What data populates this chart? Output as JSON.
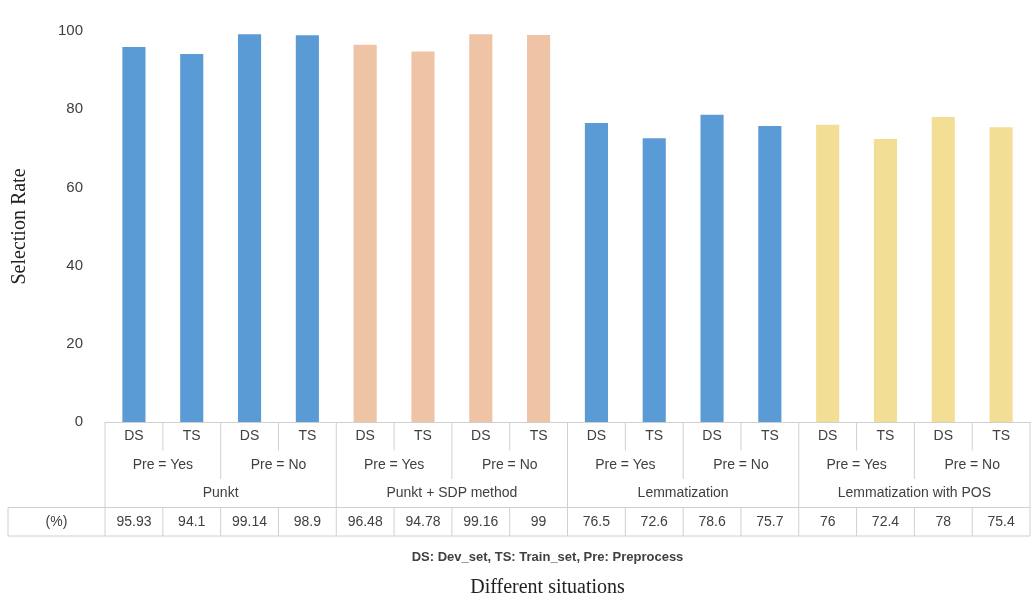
{
  "chart_data": {
    "type": "bar",
    "ylabel": "Selection Rate",
    "categories": [
      "DS",
      "TS",
      "DS",
      "TS",
      "DS",
      "TS",
      "DS",
      "TS",
      "DS",
      "TS",
      "DS",
      "TS",
      "DS",
      "TS",
      "DS",
      "TS"
    ],
    "values": [
      95.93,
      94.1,
      99.14,
      98.9,
      96.48,
      94.78,
      99.16,
      99,
      76.5,
      72.6,
      78.6,
      75.7,
      76,
      72.4,
      78,
      75.4
    ],
    "colors": [
      "#5b9bd5",
      "#5b9bd5",
      "#5b9bd5",
      "#5b9bd5",
      "#eec3a6",
      "#eec3a6",
      "#eec3a6",
      "#eec3a6",
      "#5b9bd5",
      "#5b9bd5",
      "#5b9bd5",
      "#5b9bd5",
      "#f2de94",
      "#f2de94",
      "#f2de94",
      "#f2de94"
    ],
    "ylim": [
      0,
      100
    ],
    "yticks": [
      0,
      20,
      40,
      60,
      80,
      100
    ],
    "grid": false,
    "legend": false,
    "data_labels": true,
    "annotations": [
      "Pre = Yes",
      "Pre = No",
      "Pre = Yes",
      "Pre = No",
      "Pre = Yes",
      "Pre = No",
      "Pre = Yes",
      "Pre = No",
      "Punkt",
      "Punkt + SDP method",
      "Lemmatization",
      "Lemmatization with POS",
      "(%)",
      "DS: Dev_set, TS: Train_set, Pre: Preprocess",
      "Different situations"
    ]
  }
}
